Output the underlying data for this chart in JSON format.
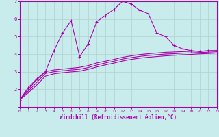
{
  "xlabel": "Windchill (Refroidissement éolien,°C)",
  "bg_color": "#c8ecec",
  "grid_color": "#b0d0d0",
  "line_color": "#aa00aa",
  "spine_color": "#aa00aa",
  "xlim": [
    0,
    23
  ],
  "ylim": [
    1,
    7
  ],
  "xticks": [
    0,
    1,
    2,
    3,
    4,
    5,
    6,
    7,
    8,
    9,
    10,
    11,
    12,
    13,
    14,
    15,
    16,
    17,
    18,
    19,
    20,
    21,
    22,
    23
  ],
  "yticks": [
    1,
    2,
    3,
    4,
    5,
    6,
    7
  ],
  "curve1_x": [
    0,
    1,
    2,
    3,
    4,
    5,
    6,
    7,
    8,
    9,
    10,
    11,
    12,
    13,
    14,
    15,
    16,
    17,
    18,
    19,
    20,
    21,
    22,
    23
  ],
  "curve1_y": [
    1.4,
    2.1,
    2.6,
    3.0,
    4.2,
    5.2,
    5.9,
    3.85,
    4.6,
    5.85,
    6.2,
    6.55,
    7.0,
    6.85,
    6.5,
    6.3,
    5.2,
    5.0,
    4.5,
    4.3,
    4.2,
    4.15,
    4.2,
    4.2
  ],
  "curve2_x": [
    0,
    1,
    2,
    3,
    4,
    5,
    6,
    7,
    8,
    9,
    10,
    11,
    12,
    13,
    14,
    15,
    16,
    17,
    18,
    19,
    20,
    21,
    22,
    23
  ],
  "curve2_y": [
    1.4,
    2.0,
    2.55,
    3.0,
    3.1,
    3.15,
    3.2,
    3.25,
    3.35,
    3.5,
    3.6,
    3.7,
    3.82,
    3.9,
    3.97,
    4.02,
    4.06,
    4.1,
    4.12,
    4.14,
    4.16,
    4.17,
    4.18,
    4.2
  ],
  "curve3_x": [
    0,
    1,
    2,
    3,
    4,
    5,
    6,
    7,
    8,
    9,
    10,
    11,
    12,
    13,
    14,
    15,
    16,
    17,
    18,
    19,
    20,
    21,
    22,
    23
  ],
  "curve3_y": [
    1.4,
    1.9,
    2.4,
    2.9,
    3.0,
    3.05,
    3.1,
    3.14,
    3.24,
    3.38,
    3.5,
    3.6,
    3.72,
    3.8,
    3.87,
    3.92,
    3.96,
    4.0,
    4.02,
    4.05,
    4.07,
    4.09,
    4.11,
    4.13
  ],
  "curve4_x": [
    0,
    1,
    2,
    3,
    4,
    5,
    6,
    7,
    8,
    9,
    10,
    11,
    12,
    13,
    14,
    15,
    16,
    17,
    18,
    19,
    20,
    21,
    22,
    23
  ],
  "curve4_y": [
    1.4,
    1.8,
    2.25,
    2.75,
    2.88,
    2.94,
    2.99,
    3.03,
    3.14,
    3.27,
    3.39,
    3.49,
    3.61,
    3.7,
    3.77,
    3.82,
    3.86,
    3.9,
    3.93,
    3.96,
    3.98,
    4.01,
    4.03,
    4.06
  ]
}
